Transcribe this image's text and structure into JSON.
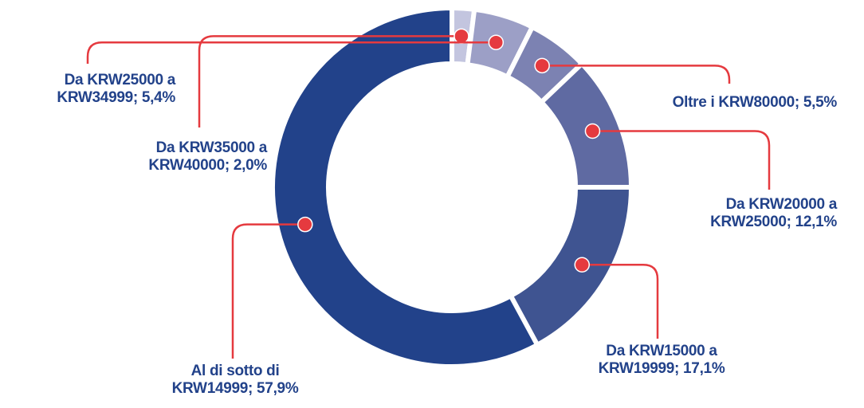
{
  "chart_data": {
    "type": "donut",
    "categories": [
      "Da KRW35000 a KRW40000; 2,0%",
      "Da KRW25000 a KRW34999; 5,4%",
      "Oltre i KRW80000; 5,5%",
      "Da KRW20000 a KRW25000; 12,1%",
      "Da KRW15000 a KRW19999; 17,1%",
      "Al di sotto di KRW14999; 57,9%"
    ],
    "values": [
      2.0,
      5.4,
      5.5,
      12.1,
      17.1,
      57.9
    ],
    "colors": [
      "#c3c5df",
      "#9c9fc6",
      "#7c82b2",
      "#5f6aa2",
      "#3f5491",
      "#22428a"
    ],
    "leader_color": "#e53a3f"
  }
}
